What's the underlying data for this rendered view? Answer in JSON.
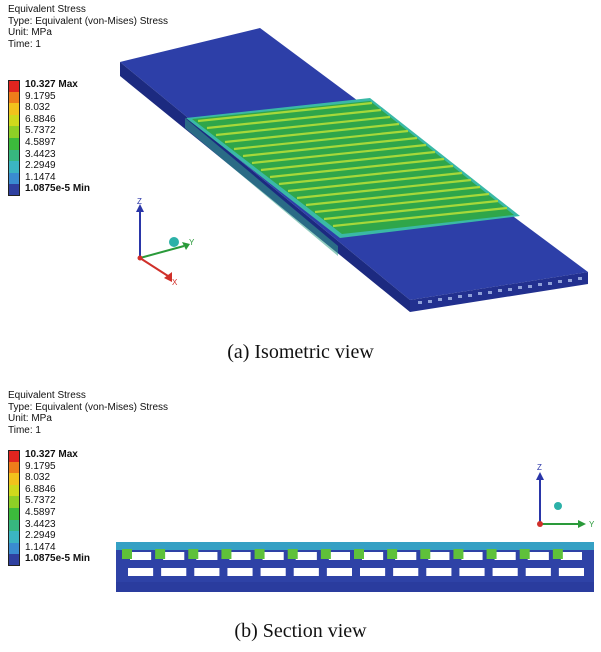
{
  "info_lines": [
    "Equivalent Stress",
    "Type: Equivalent (von-Mises) Stress",
    "Unit: MPa",
    "Time: 1"
  ],
  "legend": {
    "labels": [
      "10.327 Max",
      "9.1795",
      "8.032",
      "6.8846",
      "5.7372",
      "4.5897",
      "3.4423",
      "2.2949",
      "1.1474",
      "1.0875e-5 Min"
    ],
    "colors": [
      "#e2251f",
      "#ee7d1a",
      "#f2c21c",
      "#cfd91c",
      "#8ecf26",
      "#3cba3c",
      "#37b77f",
      "#3bb5c2",
      "#3a8cd1",
      "#2f40a0"
    ]
  },
  "triad": {
    "x": "X",
    "y": "Y",
    "z": "Z"
  },
  "captions": {
    "a": "(a) Isometric view",
    "b": "(b) Section view"
  }
}
